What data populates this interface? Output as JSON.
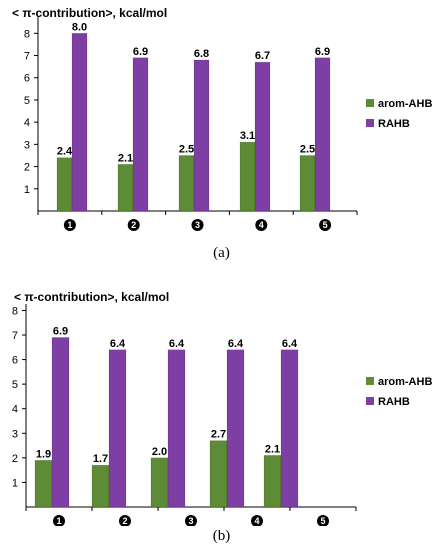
{
  "colors": {
    "arom_ahb": "#5e8b35",
    "rahb": "#7e3fa5",
    "axis": "#000000"
  },
  "chart_data": [
    {
      "type": "bar",
      "title": "< π-contribution>, kcal/mol",
      "caption": "(a)",
      "categories": [
        "1",
        "2",
        "3",
        "4",
        "5"
      ],
      "series": [
        {
          "name": "arom-AHB",
          "values": [
            2.4,
            2.1,
            2.5,
            3.1,
            2.5
          ],
          "labels": [
            "2.4",
            "2.1",
            "2.5",
            "3.1",
            "2.5"
          ]
        },
        {
          "name": "RAHB",
          "values": [
            8.0,
            6.9,
            6.8,
            6.7,
            6.9
          ],
          "labels": [
            "8.0",
            "6.9",
            "6.8",
            "6.7",
            "6.9"
          ]
        }
      ],
      "yticks": [
        "1",
        "2",
        "3",
        "4",
        "5",
        "6",
        "7",
        "8"
      ],
      "ylim": [
        0,
        8.6
      ],
      "grid": false,
      "legend_position": "right"
    },
    {
      "type": "bar",
      "title": "< π-contribution>, kcal/mol",
      "caption": "(b)",
      "categories": [
        "1",
        "2",
        "3",
        "4",
        "5"
      ],
      "series": [
        {
          "name": "arom-AHB",
          "values": [
            1.9,
            1.7,
            2.0,
            2.7,
            2.1
          ],
          "labels": [
            "1.9",
            "1.7",
            "2.0",
            "2.7",
            "2.1"
          ]
        },
        {
          "name": "RAHB",
          "values": [
            6.9,
            6.4,
            6.4,
            6.4,
            6.4
          ],
          "labels": [
            "6.9",
            "6.4",
            "6.4",
            "6.4",
            "6.4"
          ]
        }
      ],
      "yticks": [
        "1",
        "2",
        "3",
        "4",
        "5",
        "6",
        "7",
        "8"
      ],
      "ylim": [
        0,
        8.1
      ],
      "grid": false,
      "legend_position": "right"
    }
  ]
}
